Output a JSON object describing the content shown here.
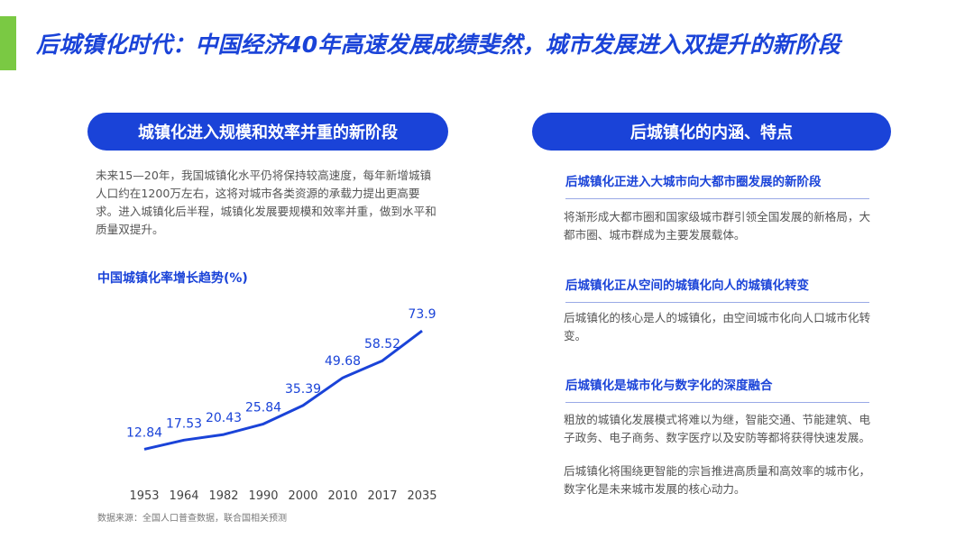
{
  "title": "后城镇化时代：中国经济40年高速发展成绩斐然，城市发展进入双提升的新阶段",
  "left": {
    "pill": "城镇化进入规模和效率并重的新阶段",
    "intro": "未来15—20年，我国城镇化水平仍将保持较高速度，每年新增城镇人口约在1200万左右，这将对城市各类资源的承载力提出更高要求。进入城镇化后半程，城镇化发展要规模和效率并重，做到水平和质量双提升。",
    "source": "数据来源：全国人口普查数据，联合国相关预测"
  },
  "right": {
    "pill": "后城镇化的内涵、特点",
    "sections": [
      {
        "heading": "后城镇化正进入大城市向大都市圈发展的新阶段",
        "body": [
          "将渐形成大都市圈和国家级城市群引领全国发展的新格局，大都市圈、城市群成为主要发展载体。"
        ]
      },
      {
        "heading": "后城镇化正从空间的城镇化向人的城镇化转变",
        "body": [
          "后城镇化的核心是人的城镇化，由空间城市化向人口城市化转变。"
        ]
      },
      {
        "heading": "后城镇化是城市化与数字化的深度融合",
        "body": [
          "粗放的城镇化发展模式将难以为继，智能交通、节能建筑、电子政务、电子商务、数字医疗以及安防等都将获得快速发展。",
          "后城镇化将围绕更智能的宗旨推进高质量和高效率的城市化，数字化是未来城市发展的核心动力。"
        ]
      }
    ]
  },
  "colors": {
    "accent": "#1a43d8",
    "bar": "#7ac943"
  },
  "chart_data": {
    "type": "line",
    "title": "中国城镇化率增长趋势(%)",
    "categories": [
      "1953",
      "1964",
      "1982",
      "1990",
      "2000",
      "2010",
      "2017",
      "2035"
    ],
    "values": [
      12.84,
      17.53,
      20.43,
      25.84,
      35.39,
      49.68,
      58.52,
      73.9
    ],
    "value_labels": [
      "12.84",
      "17.53",
      "20.43",
      "25.84",
      "35.39",
      "49.68",
      "58.52",
      "73.9"
    ],
    "ylim": [
      0,
      80
    ],
    "grid": false,
    "legend": "none"
  }
}
